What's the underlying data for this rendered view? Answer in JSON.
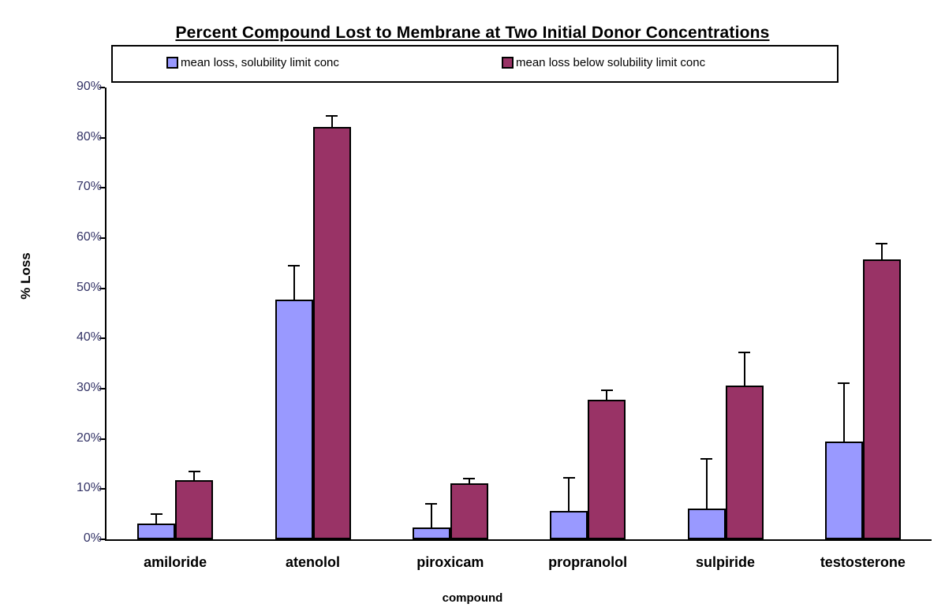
{
  "chart_data": {
    "type": "bar",
    "title": "Percent Compound Lost to Membrane at Two Initial Donor Concentrations",
    "xlabel": "compound",
    "ylabel": "% Loss",
    "categories": [
      "amiloride",
      "atenolol",
      "piroxicam",
      "propranolol",
      "sulpiride",
      "testosterone"
    ],
    "series": [
      {
        "name": "mean loss, solubility limit conc",
        "color": "#9999FF",
        "values": [
          3.2,
          47.8,
          2.4,
          5.6,
          6.1,
          19.5
        ],
        "errors_up": [
          1.8,
          6.7,
          4.6,
          6.6,
          9.9,
          11.6
        ]
      },
      {
        "name": "mean loss below solubility limit conc",
        "color": "#993366",
        "values": [
          11.8,
          82.2,
          11.2,
          27.8,
          30.6,
          55.8
        ],
        "errors_up": [
          1.7,
          2.2,
          0.9,
          1.9,
          6.7,
          3.1
        ]
      }
    ],
    "ylim": [
      0,
      90
    ],
    "ytick_step": 10,
    "ytick_labels": [
      "0%",
      "10%",
      "20%",
      "30%",
      "40%",
      "50%",
      "60%",
      "70%",
      "80%",
      "90%"
    ],
    "grid": false,
    "legend_position": "top",
    "bar_border_color": "#000000",
    "error_bar_color": "#000000",
    "axis_tick_text_color": "#333366"
  }
}
